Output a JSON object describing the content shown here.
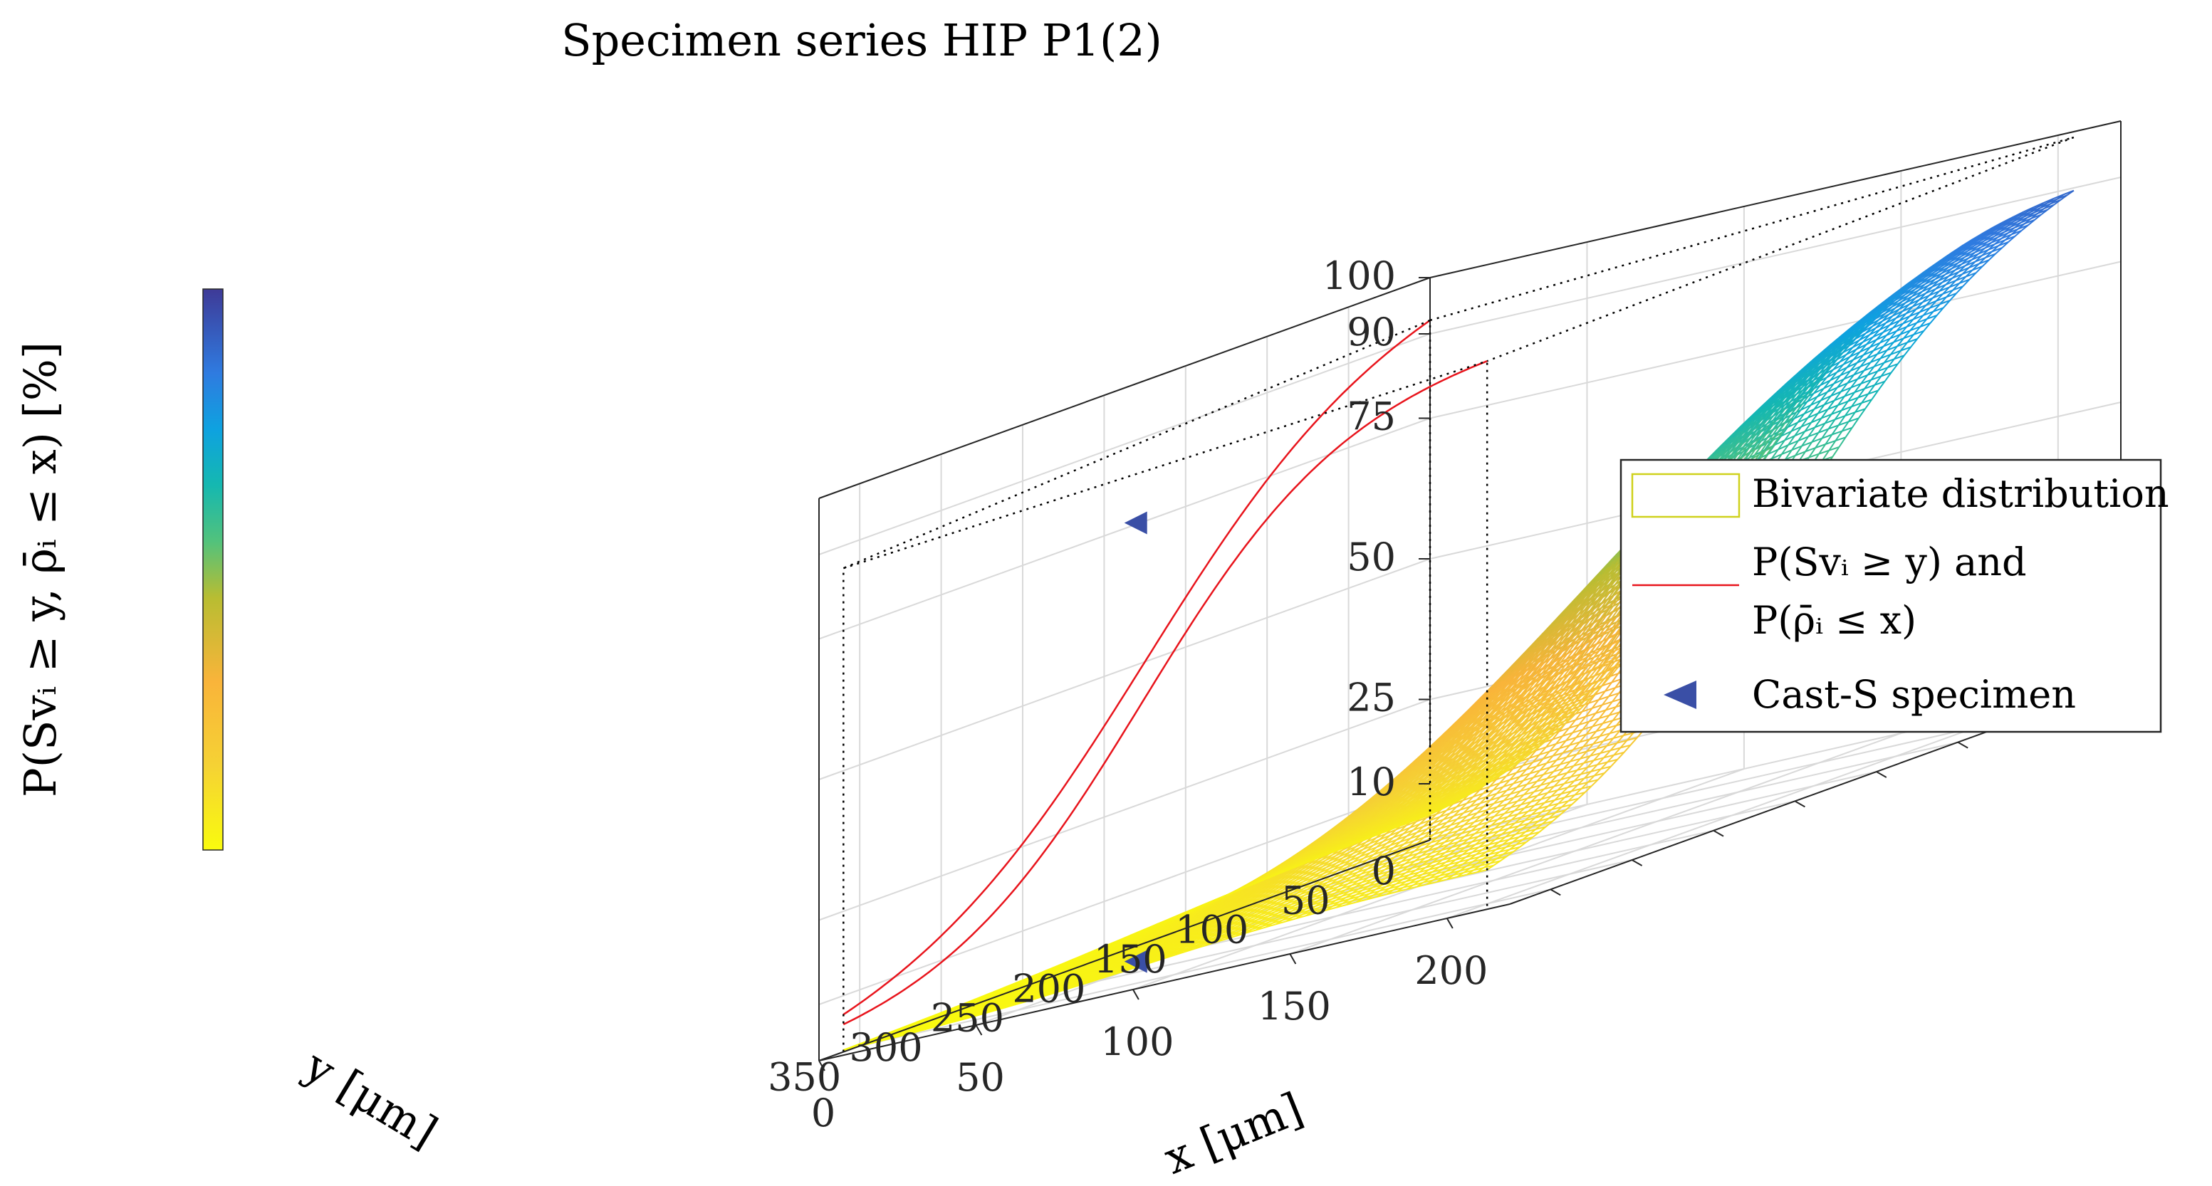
{
  "chart_data": {
    "type": "surface3d",
    "title": "Specimen series HIP P1(2)",
    "xlabel": "x [μm]",
    "ylabel": "y [μm]",
    "zlabel": "P(Sv_i ≥ y, ρ̄_i ≤ x) [%]",
    "zlabel_display": "P(Svᵢ ≥ y, ρ̄ᵢ ≤ x) [%]",
    "x_range": [
      0,
      220
    ],
    "y_range": [
      0,
      375
    ],
    "z_range": [
      0,
      100
    ],
    "x_ticks": [
      0,
      50,
      100,
      150,
      200
    ],
    "x_tick_labels": [
      "0",
      "50",
      "100",
      "150",
      "200"
    ],
    "y_ticks": [
      50,
      100,
      150,
      200,
      250,
      300,
      350
    ],
    "y_tick_labels": [
      "50",
      "100",
      "150",
      "200",
      "250",
      "300",
      "350"
    ],
    "z_ticks": [
      0,
      10,
      25,
      50,
      75,
      90,
      100
    ],
    "z_tick_labels": [
      "0",
      "10",
      "25",
      "50",
      "75",
      "90",
      "100"
    ],
    "grid": true,
    "surface": {
      "name": "Bivariate distribution",
      "x_extent": [
        0,
        205
      ],
      "y_extent": [
        0,
        360
      ],
      "x_cdf_median": 95,
      "x_cdf_spread": 32,
      "y_survival_median": 175,
      "y_survival_spread": 70,
      "colormap": "parula",
      "style": "mesh"
    },
    "marginals": {
      "name_line1": "P(Svᵢ ≥ y) and",
      "name_line2": "P(ρ̄ᵢ ≤ x)",
      "color": "#e8141c"
    },
    "specimen": {
      "name": "Cast-S specimen",
      "x": 36,
      "y": 250,
      "z": 78,
      "color": "#3a4fa6"
    },
    "legend_position": "right",
    "colorbar": true
  }
}
